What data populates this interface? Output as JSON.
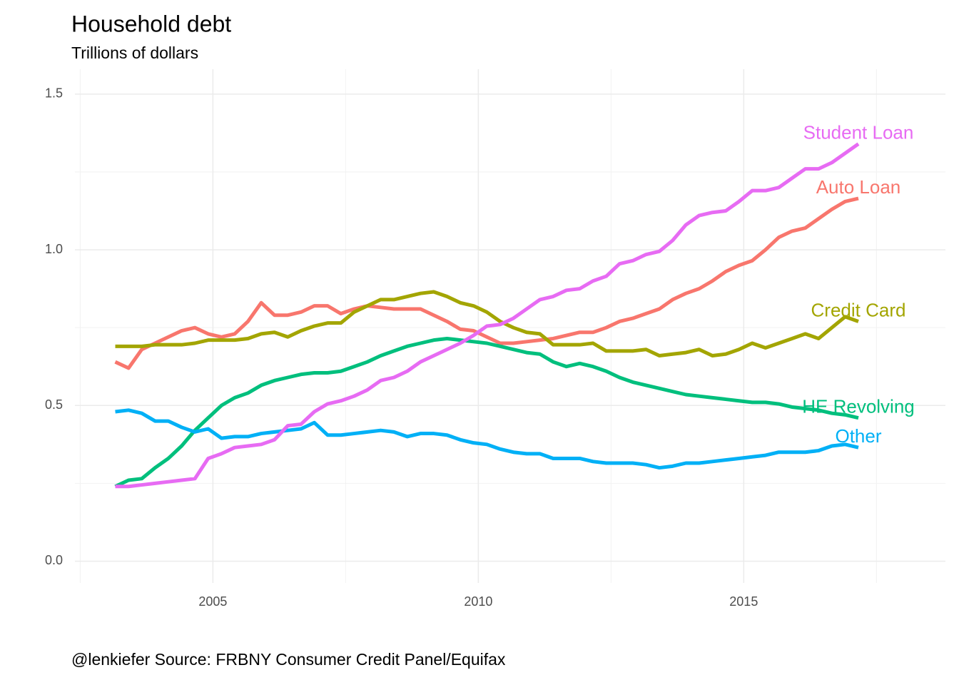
{
  "chart_data": {
    "type": "line",
    "title": "Household debt",
    "subtitle": "Trillions of dollars",
    "caption": "@lenkiefer Source: FRBNY Consumer Credit Panel/Equifax",
    "x": [
      2003.16,
      2003.41,
      2003.66,
      2003.91,
      2004.16,
      2004.41,
      2004.66,
      2004.91,
      2005.16,
      2005.41,
      2005.66,
      2005.91,
      2006.16,
      2006.41,
      2006.66,
      2006.91,
      2007.16,
      2007.41,
      2007.66,
      2007.91,
      2008.16,
      2008.41,
      2008.66,
      2008.91,
      2009.16,
      2009.41,
      2009.66,
      2009.91,
      2010.16,
      2010.41,
      2010.66,
      2010.91,
      2011.16,
      2011.41,
      2011.66,
      2011.91,
      2012.16,
      2012.41,
      2012.66,
      2012.91,
      2013.16,
      2013.41,
      2013.66,
      2013.91,
      2014.16,
      2014.41,
      2014.66,
      2014.91,
      2015.16,
      2015.41,
      2015.66,
      2015.91,
      2016.16,
      2016.41,
      2016.66,
      2016.91,
      2017.16
    ],
    "series": [
      {
        "name": "Auto Loan",
        "color": "#F8766D",
        "values": [
          0.64,
          0.62,
          0.68,
          0.7,
          0.72,
          0.74,
          0.75,
          0.73,
          0.72,
          0.73,
          0.77,
          0.83,
          0.79,
          0.79,
          0.8,
          0.82,
          0.82,
          0.795,
          0.81,
          0.82,
          0.815,
          0.81,
          0.81,
          0.81,
          0.79,
          0.77,
          0.745,
          0.74,
          0.72,
          0.7,
          0.7,
          0.705,
          0.71,
          0.715,
          0.725,
          0.735,
          0.735,
          0.75,
          0.77,
          0.78,
          0.795,
          0.81,
          0.84,
          0.86,
          0.875,
          0.9,
          0.93,
          0.95,
          0.965,
          1.0,
          1.04,
          1.06,
          1.07,
          1.1,
          1.13,
          1.155,
          1.165
        ]
      },
      {
        "name": "Credit Card",
        "color": "#A3A500",
        "values": [
          0.69,
          0.69,
          0.69,
          0.695,
          0.695,
          0.695,
          0.7,
          0.71,
          0.71,
          0.71,
          0.715,
          0.73,
          0.735,
          0.72,
          0.74,
          0.755,
          0.765,
          0.765,
          0.8,
          0.82,
          0.84,
          0.84,
          0.85,
          0.86,
          0.865,
          0.85,
          0.83,
          0.82,
          0.8,
          0.77,
          0.75,
          0.735,
          0.73,
          0.695,
          0.695,
          0.695,
          0.7,
          0.675,
          0.675,
          0.675,
          0.68,
          0.66,
          0.665,
          0.67,
          0.68,
          0.66,
          0.665,
          0.68,
          0.7,
          0.685,
          0.7,
          0.715,
          0.73,
          0.715,
          0.75,
          0.785,
          0.77
        ]
      },
      {
        "name": "HE Revolving",
        "color": "#00BF7D",
        "values": [
          0.24,
          0.26,
          0.265,
          0.3,
          0.33,
          0.37,
          0.42,
          0.46,
          0.5,
          0.525,
          0.54,
          0.565,
          0.58,
          0.59,
          0.6,
          0.605,
          0.605,
          0.61,
          0.625,
          0.64,
          0.66,
          0.675,
          0.69,
          0.7,
          0.71,
          0.715,
          0.71,
          0.705,
          0.7,
          0.69,
          0.68,
          0.67,
          0.665,
          0.64,
          0.625,
          0.635,
          0.625,
          0.61,
          0.59,
          0.575,
          0.565,
          0.555,
          0.545,
          0.535,
          0.53,
          0.525,
          0.52,
          0.515,
          0.51,
          0.51,
          0.505,
          0.495,
          0.49,
          0.485,
          0.475,
          0.47,
          0.46
        ]
      },
      {
        "name": "Other",
        "color": "#00B0F6",
        "values": [
          0.48,
          0.485,
          0.475,
          0.45,
          0.45,
          0.43,
          0.415,
          0.425,
          0.395,
          0.4,
          0.4,
          0.41,
          0.415,
          0.42,
          0.425,
          0.445,
          0.405,
          0.405,
          0.41,
          0.415,
          0.42,
          0.415,
          0.4,
          0.41,
          0.41,
          0.405,
          0.39,
          0.38,
          0.375,
          0.36,
          0.35,
          0.345,
          0.345,
          0.33,
          0.33,
          0.33,
          0.32,
          0.315,
          0.315,
          0.315,
          0.31,
          0.3,
          0.305,
          0.315,
          0.315,
          0.32,
          0.325,
          0.33,
          0.335,
          0.34,
          0.35,
          0.35,
          0.35,
          0.355,
          0.37,
          0.375,
          0.365
        ]
      },
      {
        "name": "Student Loan",
        "color": "#E76BF3",
        "values": [
          0.24,
          0.24,
          0.245,
          0.25,
          0.255,
          0.26,
          0.265,
          0.33,
          0.345,
          0.365,
          0.37,
          0.375,
          0.39,
          0.435,
          0.44,
          0.48,
          0.505,
          0.515,
          0.53,
          0.55,
          0.58,
          0.59,
          0.61,
          0.64,
          0.66,
          0.68,
          0.7,
          0.725,
          0.755,
          0.76,
          0.78,
          0.81,
          0.84,
          0.85,
          0.87,
          0.875,
          0.9,
          0.915,
          0.955,
          0.965,
          0.985,
          0.995,
          1.03,
          1.08,
          1.11,
          1.12,
          1.125,
          1.155,
          1.19,
          1.19,
          1.2,
          1.23,
          1.26,
          1.26,
          1.28,
          1.31,
          1.34
        ]
      }
    ],
    "xlim": [
      2002.4,
      2018.8
    ],
    "xticks": [
      2005,
      2010,
      2015
    ],
    "ylim": [
      -0.07,
      1.58
    ],
    "yticks": [
      {
        "value": 0,
        "label": "0.0"
      },
      0.5,
      {
        "value": 1,
        "label": "1.0"
      },
      1.5
    ],
    "grid": true
  }
}
